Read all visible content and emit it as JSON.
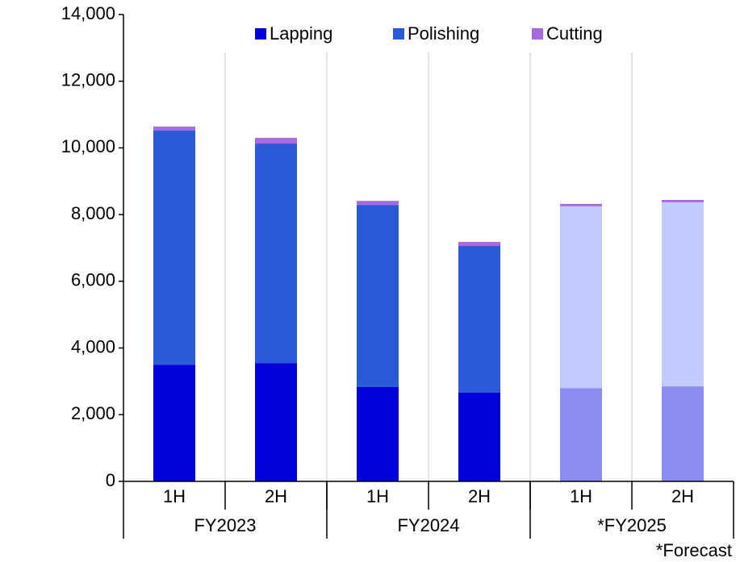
{
  "chart_data": {
    "type": "stacked_bar",
    "categories": [
      "1H",
      "2H",
      "1H",
      "2H",
      "1H",
      "2H"
    ],
    "groups": [
      "FY2023",
      "FY2024",
      "*FY2025"
    ],
    "series": [
      {
        "name": "Lapping",
        "color": "#0000d8",
        "colors": [
          "#0000d8",
          "#0000d8",
          "#0000d8",
          "#0000d8",
          "#8a8cf2",
          "#8a8cf2"
        ],
        "values": [
          3500,
          3550,
          2830,
          2660,
          2800,
          2850
        ]
      },
      {
        "name": "Polishing",
        "color": "#2a5ad8",
        "colors": [
          "#2a5ad8",
          "#2a5ad8",
          "#2a5ad8",
          "#2a5ad8",
          "#c2cbff",
          "#c2cbff"
        ],
        "values": [
          7020,
          6580,
          5460,
          4400,
          5450,
          5520
        ]
      },
      {
        "name": "Cutting",
        "color": "#a868e0",
        "colors": [
          "#a868e0",
          "#a868e0",
          "#a868e0",
          "#a868e0",
          "#a868e0",
          "#a868e0"
        ],
        "values": [
          120,
          170,
          120,
          120,
          70,
          70
        ]
      }
    ],
    "ylim": [
      0,
      14000
    ],
    "yticks": [
      0,
      {
        "value": 2000,
        "label": "2,000"
      },
      {
        "value": 4000,
        "label": "4,000"
      },
      {
        "value": 6000,
        "label": "6,000"
      },
      {
        "value": 8000,
        "label": "8,000"
      },
      {
        "value": 10000,
        "label": "10,000"
      },
      {
        "value": 12000,
        "label": "12,000"
      },
      {
        "value": 14000,
        "label": "14,000"
      }
    ],
    "legend": "top",
    "note": "*Forecast"
  }
}
